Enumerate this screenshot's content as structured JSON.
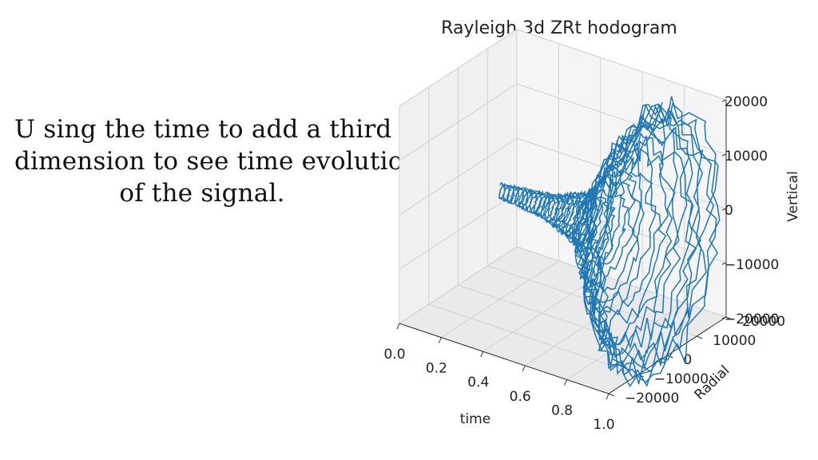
{
  "caption": {
    "lines": [
      "U sing the time to add a third",
      "dimension to see time evolution",
      "of the signal."
    ]
  },
  "chart_data": {
    "type": "line3d",
    "title": "Rayleigh 3d ZRt hodogram",
    "xlabel": "time",
    "ylabel": "Radial",
    "zlabel": "Vertical",
    "xlim": [
      0.0,
      1.0
    ],
    "ylim": [
      -20000,
      20000
    ],
    "zlim": [
      -20000,
      20000
    ],
    "x_ticks": [
      "0.0",
      "0.2",
      "0.4",
      "0.6",
      "0.8",
      "1.0"
    ],
    "y_ticks": [
      "−20000",
      "−10000",
      "0",
      "10000",
      "20000"
    ],
    "z_ticks": [
      "−20000",
      "−10000",
      "0",
      "10000",
      "20000"
    ],
    "grid": true,
    "line_color": "#1f77b4",
    "series": [
      {
        "description_of_shape": "spiral trace, amplitude grows with time",
        "samples_per_unit_time": 2200,
        "envelope": [
          {
            "t": 0.0,
            "radial": 1200,
            "vertical": 1200
          },
          {
            "t": 0.3,
            "radial": 2500,
            "vertical": 2000
          },
          {
            "t": 0.55,
            "radial": 5500,
            "vertical": 4500
          },
          {
            "t": 0.7,
            "radial": 11000,
            "vertical": 12000
          },
          {
            "t": 0.85,
            "radial": 17000,
            "vertical": 21000
          },
          {
            "t": 1.0,
            "radial": 20000,
            "vertical": 24000
          }
        ]
      }
    ]
  }
}
